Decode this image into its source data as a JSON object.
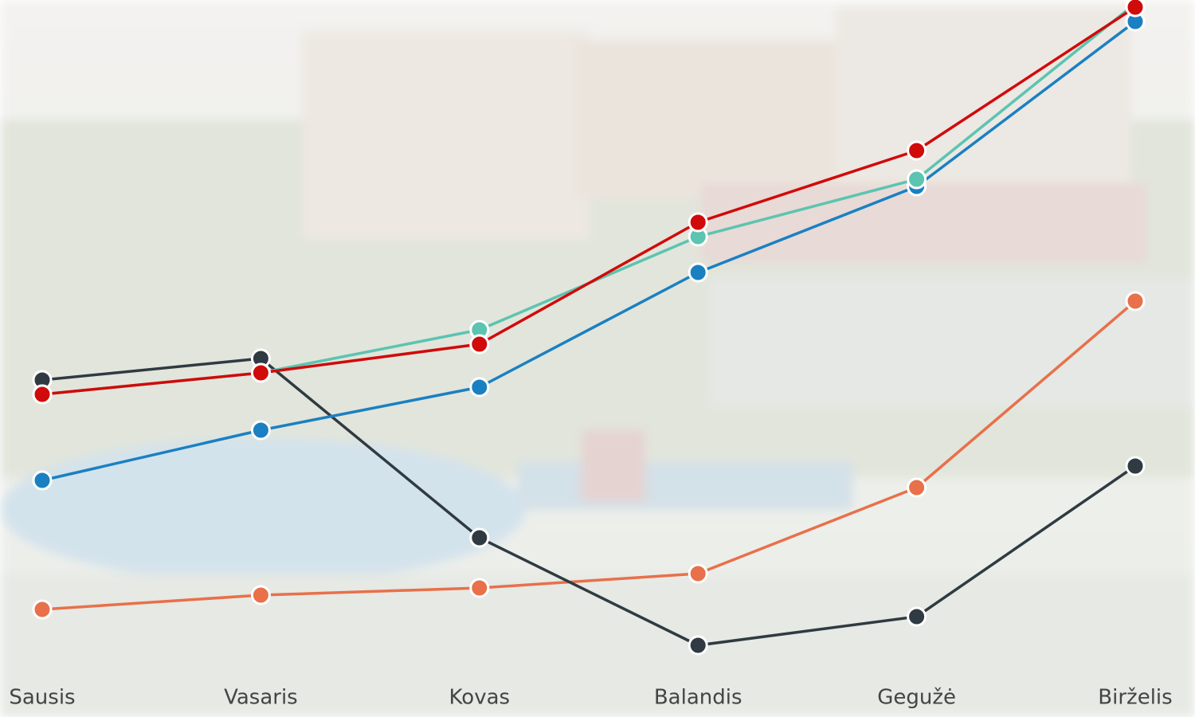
{
  "chart_data": {
    "type": "line",
    "categories": [
      "Sausis",
      "Vasaris",
      "Kovas",
      "Balandis",
      "Gegužė",
      "Birželis"
    ],
    "series": [
      {
        "color": "#e8704a",
        "values": [
          15,
          17,
          18,
          20,
          32,
          58
        ]
      },
      {
        "color": "#2f3a42",
        "values": [
          47,
          50,
          25,
          10,
          14,
          35
        ]
      },
      {
        "color": "#1a80c2",
        "values": [
          33,
          40,
          46,
          62,
          74,
          97
        ]
      },
      {
        "color": "#5cc4b0",
        "values": [
          45,
          48,
          54,
          67,
          75,
          99.5
        ]
      },
      {
        "color": "#d10a0a",
        "values": [
          45,
          48,
          52,
          69,
          79,
          99
        ]
      }
    ],
    "ylim": [
      0,
      100
    ]
  }
}
